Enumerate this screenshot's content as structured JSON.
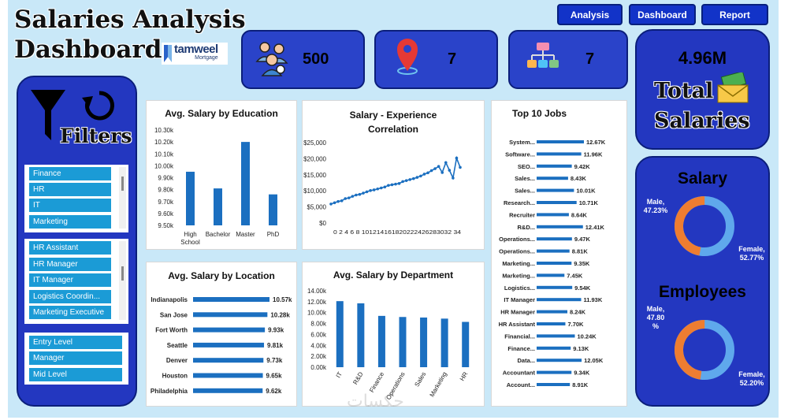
{
  "header": {
    "title_line1": "Salaries Analysis",
    "title_line2": "Dashboard",
    "logo_brand": "tamweel",
    "logo_sub": "Mortgage"
  },
  "nav": {
    "analysis": "Analysis",
    "dashboard": "Dashboard",
    "report": "Report"
  },
  "kpis": {
    "employees": "500",
    "locations": "7",
    "departments": "7"
  },
  "total": {
    "value": "4.96M",
    "line1": "Total",
    "line2": "Salaries"
  },
  "filters": {
    "title": "Filters",
    "departments": [
      "Finance",
      "HR",
      "IT",
      "Marketing"
    ],
    "jobs": [
      "HR Assistant",
      "HR Manager",
      "IT Manager",
      "Logistics Coordin...",
      "Marketing Executive"
    ],
    "levels": [
      "Entry Level",
      "Manager",
      "Mid Level"
    ]
  },
  "donuts": {
    "salary": {
      "title": "Salary",
      "male_label": "Male,",
      "male_value": "47.23%",
      "female_label": "Female,",
      "female_value": "52.77%",
      "male_pct": 47.23,
      "female_pct": 52.77
    },
    "employees": {
      "title": "Employees",
      "male_label": "Male,",
      "male_value": "47.80",
      "male_unit": "%",
      "female_label": "Female,",
      "female_value": "52.20%",
      "male_pct": 47.8,
      "female_pct": 52.2
    }
  },
  "colors": {
    "bar": "#1b6fc0",
    "male": "#ee7d31",
    "female": "#5fa8ec",
    "panel": "#2337c0"
  },
  "watermark": "حكسات",
  "chart_data": [
    {
      "type": "bar",
      "title": "Avg. Salary by Education",
      "categories": [
        "High School",
        "Bachelor",
        "Master",
        "PhD"
      ],
      "values": [
        9.95,
        9.81,
        10.2,
        9.76
      ],
      "ylim": [
        9.5,
        10.3
      ],
      "yticks": [
        "9.50k",
        "9.60k",
        "9.70k",
        "9.80k",
        "9.90k",
        "10.00k",
        "10.10k",
        "10.20k",
        "10.30k"
      ]
    },
    {
      "type": "line",
      "title": "Salary - Experience Correlation",
      "ylim": [
        0,
        25000
      ],
      "yticks": [
        "$0",
        "$5,000",
        "$10,000",
        "$15,000",
        "$20,000",
        "$25,000"
      ],
      "x_tick_text": "0 2 4 6 8 101214161820222426283032 34",
      "x": [
        0,
        1,
        2,
        3,
        4,
        5,
        6,
        7,
        8,
        9,
        10,
        11,
        12,
        13,
        14,
        15,
        16,
        17,
        18,
        19,
        20,
        21,
        22,
        23,
        24,
        25,
        26,
        27,
        28,
        29,
        30,
        31,
        32,
        33,
        34,
        35,
        36
      ],
      "values": [
        5900,
        6300,
        6700,
        6900,
        7600,
        7800,
        8300,
        8700,
        8900,
        9300,
        9700,
        10100,
        10300,
        10600,
        10900,
        11200,
        11700,
        11900,
        12100,
        12300,
        12900,
        13200,
        13500,
        13800,
        14200,
        14600,
        15200,
        15600,
        16300,
        16900,
        17600,
        15700,
        18800,
        16400,
        14000,
        20200,
        17300
      ]
    },
    {
      "type": "bar",
      "title": "Top 10 Jobs",
      "categories": [
        "System...",
        "Software...",
        "SEO...",
        "Sales...",
        "Sales...",
        "Research...",
        "Recruiter",
        "R&D...",
        "Operations...",
        "Operations...",
        "Marketing...",
        "Marketing...",
        "Logistics...",
        "IT Manager",
        "HR Manager",
        "HR Assistant",
        "Financial...",
        "Finance...",
        "Data...",
        "Accountant",
        "Account..."
      ],
      "values": [
        12.67,
        11.96,
        9.42,
        8.43,
        10.01,
        10.71,
        8.64,
        12.41,
        9.47,
        8.81,
        9.35,
        7.45,
        9.54,
        11.93,
        8.24,
        7.7,
        10.24,
        9.13,
        12.05,
        9.34,
        8.91
      ],
      "labels": [
        "12.67K",
        "11.96K",
        "9.42K",
        "8.43K",
        "10.01K",
        "10.71K",
        "8.64K",
        "12.41K",
        "9.47K",
        "8.81K",
        "9.35K",
        "7.45K",
        "9.54K",
        "11.93K",
        "8.24K",
        "7.70K",
        "10.24K",
        "9.13K",
        "12.05K",
        "9.34K",
        "8.91K"
      ]
    },
    {
      "type": "bar",
      "title": "Avg. Salary by Location",
      "categories": [
        "Indianapolis",
        "San Jose",
        "Fort Worth",
        "Seattle",
        "Denver",
        "Houston",
        "Philadelphia"
      ],
      "values": [
        10.57,
        10.28,
        9.93,
        9.81,
        9.73,
        9.65,
        9.62
      ],
      "labels": [
        "10.57k",
        "10.28k",
        "9.93k",
        "9.81k",
        "9.73k",
        "9.65k",
        "9.62k"
      ]
    },
    {
      "type": "bar",
      "title": "Avg. Salary by Department",
      "categories": [
        "IT",
        "R&D",
        "Finance",
        "Operations",
        "Sales",
        "Marketing",
        "HR"
      ],
      "values": [
        12.1,
        11.7,
        9.4,
        9.2,
        9.1,
        8.9,
        8.3
      ],
      "ylim": [
        0,
        14
      ],
      "yticks": [
        "0.00k",
        "2.00k",
        "4.00k",
        "6.00k",
        "8.00k",
        "10.00k",
        "12.00k",
        "14.00k"
      ]
    }
  ]
}
